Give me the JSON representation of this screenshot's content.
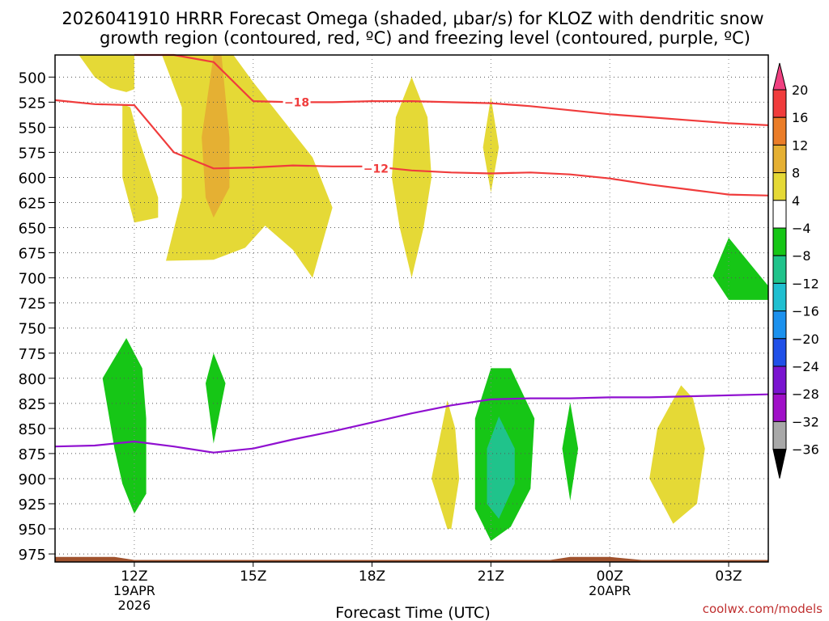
{
  "chart_data": {
    "type": "heatmap",
    "title": "2026041910 HRRR Forecast Omega (shaded, μbar/s) for KLOZ with dendritic snow",
    "subtitle": "growth region (contoured, red, ºC) and freezing level (contoured, purple, ºC)",
    "xlabel": "Forecast Time (UTC)",
    "credit": "coolwx.com/models",
    "x_ticks": [
      {
        "label": "12Z",
        "sub": [
          "19APR",
          "2026"
        ],
        "hour": 12
      },
      {
        "label": "15Z",
        "sub": [],
        "hour": 15
      },
      {
        "label": "18Z",
        "sub": [],
        "hour": 18
      },
      {
        "label": "21Z",
        "sub": [],
        "hour": 21
      },
      {
        "label": "00Z",
        "sub": [
          "20APR"
        ],
        "hour": 24
      },
      {
        "label": "03Z",
        "sub": [],
        "hour": 27
      }
    ],
    "xlim": [
      10,
      28
    ],
    "y_ticks": [
      500,
      525,
      550,
      575,
      600,
      625,
      650,
      675,
      700,
      725,
      750,
      775,
      800,
      825,
      850,
      875,
      900,
      925,
      950,
      975
    ],
    "ylim": [
      478,
      983
    ],
    "ylabel_unit": "hPa",
    "colorbar": {
      "labels": [
        "20",
        "16",
        "12",
        "8",
        "4",
        "−4",
        "−8",
        "−12",
        "−16",
        "−20",
        "−24",
        "−28",
        "−32",
        "−36"
      ],
      "colors": [
        "#f04080",
        "#f03c3c",
        "#eb7d28",
        "#e5b033",
        "#e5d936",
        "#ffffff",
        "#16c616",
        "#20c38b",
        "#1fbfd0",
        "#1b91ee",
        "#2050e8",
        "#7a14d0",
        "#a010c8",
        "#a8a8a8",
        "#000000"
      ]
    },
    "colors": {
      "yellow": "#e5d936",
      "orange": "#e5b033",
      "green": "#16c616",
      "teal": "#20c38b",
      "red_line": "#f03c3c",
      "purple_line": "#9010d0",
      "terrain": "#a0522d",
      "credit": "#c03030"
    },
    "series": [
      {
        "name": "dgz_-18",
        "label": "−18",
        "label_at": [
          16.1,
          525
        ],
        "x": [
          10.0,
          11.0,
          12.0,
          13.0,
          14.0,
          15.0,
          16.0,
          17.0,
          18.0,
          19.0,
          20.0,
          21.0,
          22.0,
          23.0,
          24.0,
          25.0,
          26.0,
          27.0,
          28.0
        ],
        "y": [
          null,
          null,
          478,
          478,
          485,
          524,
          525,
          525,
          524,
          524,
          525,
          526,
          529,
          533,
          537,
          540,
          543,
          546,
          548
        ]
      },
      {
        "name": "dgz_-12",
        "label": "−12",
        "label_at": [
          18.1,
          591
        ],
        "x": [
          10.0,
          11.0,
          12.0,
          13.0,
          14.0,
          15.0,
          16.0,
          17.0,
          18.0,
          19.0,
          20.0,
          21.0,
          22.0,
          23.0,
          24.0,
          25.0,
          26.0,
          27.0,
          28.0
        ],
        "y": [
          523,
          527,
          528,
          575,
          591,
          590,
          588,
          589,
          589,
          593,
          595,
          596,
          595,
          597,
          601,
          607,
          612,
          617,
          618
        ]
      },
      {
        "name": "freezing_level",
        "label": "",
        "x": [
          10.0,
          11.0,
          12.0,
          13.0,
          14.0,
          15.0,
          16.0,
          17.0,
          18.0,
          19.0,
          20.0,
          21.0,
          22.0,
          23.0,
          24.0,
          25.0,
          26.0,
          27.0,
          28.0
        ],
        "y": [
          868,
          867,
          863,
          868,
          874,
          870,
          861,
          853,
          844,
          835,
          827,
          821,
          820,
          820,
          819,
          819,
          818,
          817,
          816
        ]
      }
    ],
    "regions": [
      {
        "name": "yellow-region-top-left",
        "level": 4,
        "points": [
          [
            10.6,
            478
          ],
          [
            11.0,
            500
          ],
          [
            11.4,
            511
          ],
          [
            11.8,
            515
          ],
          [
            12.0,
            512
          ],
          [
            12.0,
            478
          ]
        ]
      },
      {
        "name": "green-sliver-top",
        "level": -4,
        "points": [
          [
            12.8,
            478
          ],
          [
            12.9,
            495
          ],
          [
            13.0,
            478
          ]
        ]
      },
      {
        "name": "yellow-region-upper-main",
        "level": 4,
        "points": [
          [
            12.7,
            478
          ],
          [
            13.2,
            530
          ],
          [
            13.2,
            620
          ],
          [
            12.8,
            683
          ],
          [
            14.0,
            682
          ],
          [
            14.8,
            670
          ],
          [
            15.3,
            648
          ],
          [
            16.0,
            672
          ],
          [
            16.5,
            700
          ],
          [
            17.0,
            630
          ],
          [
            16.5,
            580
          ],
          [
            15.0,
            505
          ],
          [
            14.5,
            478
          ]
        ]
      },
      {
        "name": "yellow-region-left-column",
        "level": 4,
        "points": [
          [
            11.7,
            527
          ],
          [
            11.7,
            600
          ],
          [
            12.0,
            645
          ],
          [
            12.6,
            640
          ],
          [
            12.6,
            620
          ],
          [
            12.1,
            560
          ],
          [
            11.9,
            530
          ]
        ]
      },
      {
        "name": "orange-region",
        "level": 8,
        "points": [
          [
            14.0,
            478
          ],
          [
            13.7,
            560
          ],
          [
            13.8,
            620
          ],
          [
            14.0,
            640
          ],
          [
            14.4,
            610
          ],
          [
            14.4,
            560
          ],
          [
            14.2,
            478
          ]
        ]
      },
      {
        "name": "yellow-region-19z",
        "level": 4,
        "points": [
          [
            19.0,
            500
          ],
          [
            18.6,
            540
          ],
          [
            18.5,
            600
          ],
          [
            18.7,
            650
          ],
          [
            19.0,
            700
          ],
          [
            19.3,
            650
          ],
          [
            19.5,
            600
          ],
          [
            19.4,
            540
          ]
        ]
      },
      {
        "name": "yellow-region-21z-top",
        "level": 4,
        "points": [
          [
            21.0,
            520
          ],
          [
            20.8,
            570
          ],
          [
            21.0,
            615
          ],
          [
            21.2,
            570
          ]
        ]
      },
      {
        "name": "green-region-top-right",
        "level": -4,
        "points": [
          [
            27.0,
            660
          ],
          [
            26.6,
            698
          ],
          [
            27.0,
            722
          ],
          [
            28.0,
            722
          ],
          [
            28.0,
            708
          ]
        ]
      },
      {
        "name": "green-region-12z",
        "level": -4,
        "points": [
          [
            11.8,
            760
          ],
          [
            11.2,
            800
          ],
          [
            11.5,
            870
          ],
          [
            11.7,
            905
          ],
          [
            12.0,
            935
          ],
          [
            12.3,
            915
          ],
          [
            12.3,
            840
          ],
          [
            12.2,
            790
          ]
        ]
      },
      {
        "name": "green-region-14z",
        "level": -4,
        "points": [
          [
            14.0,
            775
          ],
          [
            13.8,
            805
          ],
          [
            14.0,
            865
          ],
          [
            14.3,
            805
          ]
        ]
      },
      {
        "name": "yellow-region-20z",
        "level": 4,
        "points": [
          [
            19.9,
            822
          ],
          [
            19.5,
            900
          ],
          [
            19.9,
            950
          ],
          [
            20.0,
            950
          ],
          [
            20.2,
            900
          ],
          [
            20.1,
            850
          ]
        ]
      },
      {
        "name": "green-region-21z",
        "level": -4,
        "points": [
          [
            21.0,
            790
          ],
          [
            20.6,
            840
          ],
          [
            20.6,
            930
          ],
          [
            21.0,
            962
          ],
          [
            21.5,
            948
          ],
          [
            22.0,
            910
          ],
          [
            22.1,
            840
          ],
          [
            21.5,
            790
          ]
        ]
      },
      {
        "name": "teal-region-21z",
        "level": -8,
        "points": [
          [
            21.2,
            838
          ],
          [
            20.9,
            870
          ],
          [
            20.9,
            925
          ],
          [
            21.2,
            940
          ],
          [
            21.6,
            905
          ],
          [
            21.6,
            870
          ]
        ]
      },
      {
        "name": "green-region-23z",
        "level": -4,
        "points": [
          [
            23.0,
            824
          ],
          [
            22.8,
            870
          ],
          [
            23.0,
            922
          ],
          [
            23.2,
            870
          ]
        ]
      },
      {
        "name": "yellow-region-01z",
        "level": 4,
        "points": [
          [
            25.8,
            807
          ],
          [
            25.2,
            850
          ],
          [
            25.0,
            900
          ],
          [
            25.6,
            945
          ],
          [
            26.2,
            925
          ],
          [
            26.4,
            870
          ],
          [
            26.1,
            820
          ]
        ]
      }
    ],
    "terrain": [
      [
        10.0,
        983
      ],
      [
        10.0,
        978
      ],
      [
        11.5,
        978
      ],
      [
        12.0,
        981
      ],
      [
        22.5,
        981
      ],
      [
        23.0,
        978
      ],
      [
        24.0,
        978
      ],
      [
        24.8,
        981
      ],
      [
        28.0,
        981
      ],
      [
        28.0,
        983
      ]
    ]
  }
}
